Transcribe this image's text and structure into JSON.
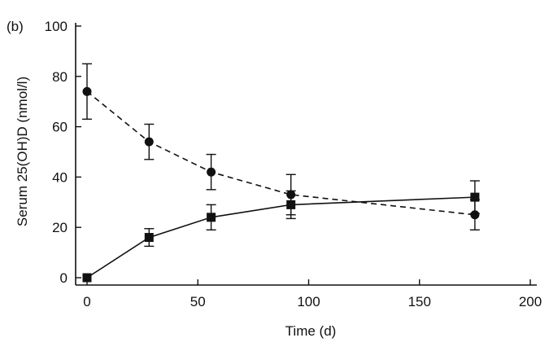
{
  "chart_data": {
    "type": "line",
    "panel_label": "(b)",
    "xlabel": "Time (d)",
    "ylabel": "Serum 25(OH)D (nmol/l)",
    "xlim": [
      0,
      200
    ],
    "ylim": [
      0,
      100
    ],
    "xticks": [
      "0",
      "50",
      "100",
      "150",
      "200"
    ],
    "yticks": [
      "0",
      "20",
      "40",
      "60",
      "80",
      "100"
    ],
    "grid": false,
    "legend": "none",
    "series": [
      {
        "name": "circles-dashed",
        "marker": "circle",
        "line": "dashed",
        "x": [
          0,
          28,
          56,
          92,
          175
        ],
        "y": [
          74,
          54,
          42,
          33,
          25
        ],
        "err": [
          11,
          7,
          7,
          8,
          6
        ]
      },
      {
        "name": "squares-solid",
        "marker": "square",
        "line": "solid",
        "x": [
          0,
          28,
          56,
          92,
          175
        ],
        "y": [
          0,
          16,
          24,
          29,
          32
        ],
        "err": [
          0,
          3.5,
          5,
          5.5,
          6.5
        ]
      }
    ]
  }
}
